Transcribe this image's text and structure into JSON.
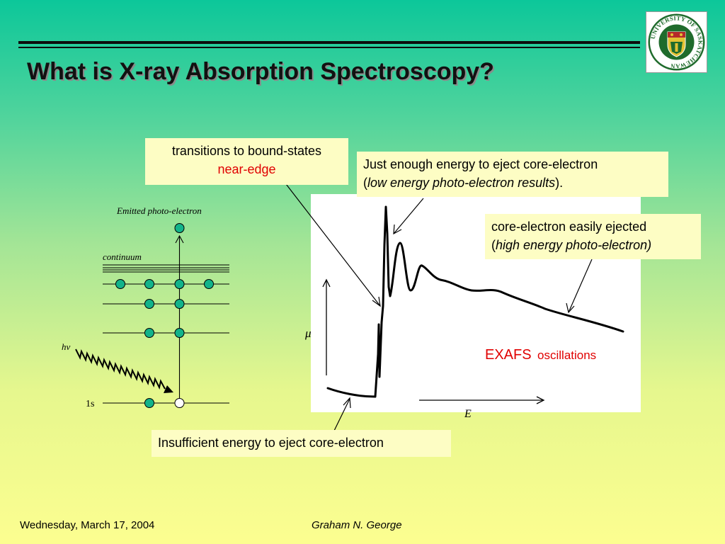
{
  "slide": {
    "title": "What is X-ray Absorption Spectroscopy?"
  },
  "logo": {
    "ring_text": "UNIVERSITY OF SASKATCHEWAN",
    "colors": {
      "green": "#1f6b2c",
      "gold": "#e2c233",
      "red": "#b52a2a"
    }
  },
  "callouts": {
    "bound_states": {
      "line1": "transitions to bound-states",
      "line2": "near-edge"
    },
    "low_energy": {
      "line1": "Just enough energy to eject core-electron",
      "line2_open": "(",
      "line2_italic": "low energy photo-electron results",
      "line2_close": ")."
    },
    "high_energy": {
      "line1": "core-electron easily ejected",
      "line2_open": "(",
      "line2_italic": "high energy photo-electron)"
    },
    "insufficient": {
      "text": "Insufficient energy to eject core-electron"
    }
  },
  "energy_diagram": {
    "emitted_label": "Emitted photo-electron",
    "continuum_label": "continuum",
    "photon_label": "hν",
    "core_label": "1s",
    "colors": {
      "electron": "#12b38a",
      "hole": "#ffffff",
      "line": "#000000"
    }
  },
  "spectrum": {
    "y_axis_label": "μ",
    "x_axis_label": "E",
    "exafs_word": "EXAFS",
    "exafs_suffix": "oscillations",
    "colors": {
      "annotation": "#e00000",
      "curve": "#000000"
    }
  },
  "footer": {
    "date": "Wednesday, March 17, 2004",
    "author": "Graham N. George"
  }
}
